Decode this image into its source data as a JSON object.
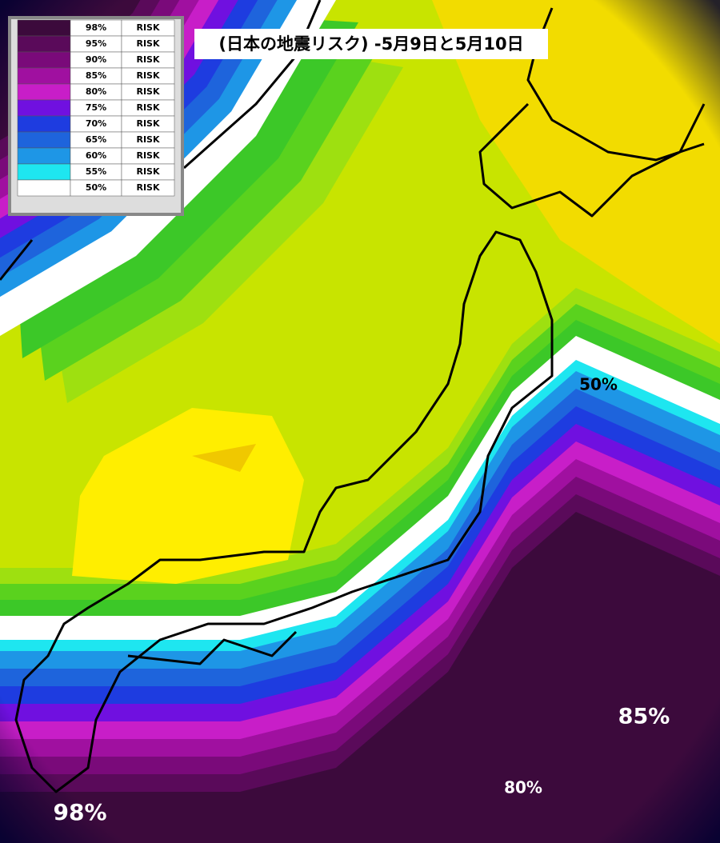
{
  "title": "(日本の地震リスク) -5月9日と5月10日",
  "legend": {
    "rows": [
      {
        "color": "#3c0a3c",
        "level": "98%",
        "label": "RISK"
      },
      {
        "color": "#5a0a5a",
        "level": "95%",
        "label": "RISK"
      },
      {
        "color": "#7a0a7a",
        "level": "90%",
        "label": "RISK"
      },
      {
        "color": "#a010a0",
        "level": "85%",
        "label": "RISK"
      },
      {
        "color": "#c81ec8",
        "level": "80%",
        "label": "RISK"
      },
      {
        "color": "#7010e0",
        "level": "75%",
        "label": "RISK"
      },
      {
        "color": "#1e3ce0",
        "level": "70%",
        "label": "RISK"
      },
      {
        "color": "#1e64dc",
        "level": "65%",
        "label": "RISK"
      },
      {
        "color": "#1e96e6",
        "level": "60%",
        "label": "RISK"
      },
      {
        "color": "#1ee6f0",
        "level": "55%",
        "label": "RISK"
      },
      {
        "color": "#ffffff",
        "level": "50%",
        "label": "RISK"
      }
    ]
  },
  "map_labels": [
    "50%",
    "85%",
    "80%",
    "98%"
  ]
}
